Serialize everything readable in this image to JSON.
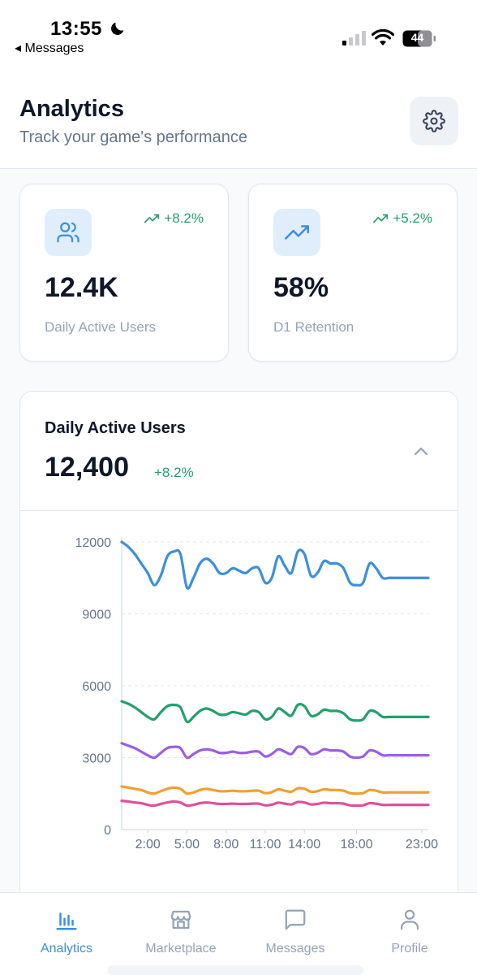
{
  "status_bar": {
    "time": "13:55",
    "back_label": "Messages",
    "battery": "44"
  },
  "header": {
    "title": "Analytics",
    "subtitle": "Track your game's performance",
    "settings_icon": "gear-icon"
  },
  "stats": [
    {
      "icon": "users-icon",
      "change": "+8.2%",
      "value": "12.4K",
      "label": "Daily Active Users"
    },
    {
      "icon": "trending-up-icon",
      "change": "+5.2%",
      "value": "58%",
      "label": "D1 Retention"
    }
  ],
  "chart_card": {
    "title": "Daily Active Users",
    "total": "12,400",
    "change": "+8.2%",
    "collapse_icon": "chevron-up-icon"
  },
  "chart_data": {
    "type": "line",
    "x_ticks": [
      "2:00",
      "5:00",
      "8:00",
      "11:00",
      "14:00",
      "18:00",
      "23:00"
    ],
    "y_ticks": [
      "0",
      "3000",
      "6000",
      "9000",
      "12000"
    ],
    "ylim": [
      0,
      12000
    ],
    "x": [
      0,
      0.5,
      1,
      1.5,
      2,
      2.5,
      3,
      3.5,
      4,
      4.5,
      5,
      5.5,
      6,
      6.5,
      7,
      7.5,
      8,
      8.5,
      9,
      9.5,
      10,
      10.5,
      11,
      11.5,
      12,
      12.5,
      13,
      13.5,
      14,
      14.5,
      15,
      15.5,
      16,
      16.5,
      17,
      17.5,
      18,
      18.5,
      19,
      19.5,
      20,
      20.5,
      21,
      21.5,
      22,
      22.5,
      23,
      23.5
    ],
    "xlim": [
      0,
      23.5
    ],
    "x_tick_values": [
      2,
      5,
      8,
      11,
      14,
      18,
      23
    ],
    "grid": true,
    "series": [
      {
        "color": "#3b8fdd",
        "values": [
          12000,
          11800,
          11500,
          11100,
          10700,
          10200,
          10600,
          11400,
          11600,
          11500,
          10100,
          10500,
          11100,
          11300,
          11100,
          10700,
          10700,
          10900,
          10800,
          10700,
          10900,
          10900,
          10300,
          10500,
          11400,
          11000,
          10700,
          11600,
          11500,
          10600,
          10700,
          11200,
          11100,
          11100,
          10900,
          10300,
          10200,
          10300,
          11100,
          10900,
          10500,
          10500,
          10500,
          10500,
          10500,
          10500,
          10500,
          10500
        ]
      },
      {
        "color": "#22a06b",
        "values": [
          5350,
          5250,
          5100,
          4900,
          4700,
          4600,
          4900,
          5150,
          5200,
          5100,
          4500,
          4700,
          4950,
          5050,
          4950,
          4800,
          4800,
          4900,
          4850,
          4800,
          4950,
          4900,
          4600,
          4700,
          5050,
          4900,
          4750,
          5200,
          5150,
          4750,
          4800,
          5000,
          4950,
          4950,
          4850,
          4600,
          4550,
          4600,
          4950,
          4900,
          4700,
          4700,
          4700,
          4700,
          4700,
          4700,
          4700,
          4700
        ]
      },
      {
        "color": "#9b5de5",
        "values": [
          3600,
          3500,
          3400,
          3250,
          3100,
          3000,
          3200,
          3400,
          3450,
          3400,
          3000,
          3150,
          3300,
          3350,
          3300,
          3200,
          3200,
          3250,
          3200,
          3200,
          3250,
          3250,
          3050,
          3150,
          3350,
          3250,
          3150,
          3450,
          3400,
          3150,
          3200,
          3350,
          3300,
          3300,
          3250,
          3050,
          3000,
          3050,
          3300,
          3250,
          3100,
          3100,
          3100,
          3100,
          3100,
          3100,
          3100,
          3100
        ]
      },
      {
        "color": "#f0a030",
        "values": [
          1800,
          1750,
          1700,
          1650,
          1550,
          1500,
          1600,
          1700,
          1750,
          1700,
          1500,
          1550,
          1650,
          1700,
          1650,
          1600,
          1600,
          1620,
          1600,
          1600,
          1620,
          1620,
          1520,
          1560,
          1680,
          1620,
          1580,
          1720,
          1700,
          1580,
          1600,
          1680,
          1650,
          1650,
          1620,
          1520,
          1500,
          1520,
          1650,
          1620,
          1550,
          1550,
          1550,
          1550,
          1550,
          1550,
          1550,
          1550
        ]
      },
      {
        "color": "#e0509a",
        "values": [
          1200,
          1170,
          1130,
          1100,
          1030,
          1000,
          1070,
          1130,
          1170,
          1130,
          1000,
          1030,
          1100,
          1130,
          1100,
          1070,
          1070,
          1080,
          1070,
          1070,
          1080,
          1080,
          1010,
          1040,
          1120,
          1080,
          1050,
          1150,
          1130,
          1050,
          1070,
          1120,
          1100,
          1100,
          1080,
          1010,
          1000,
          1010,
          1100,
          1080,
          1030,
          1030,
          1030,
          1030,
          1030,
          1030,
          1030,
          1030
        ]
      }
    ]
  },
  "bottom_nav": [
    {
      "label": "Analytics",
      "icon": "bar-chart-icon",
      "active": true
    },
    {
      "label": "Marketplace",
      "icon": "store-icon",
      "active": false
    },
    {
      "label": "Messages",
      "icon": "message-icon",
      "active": false
    },
    {
      "label": "Profile",
      "icon": "user-icon",
      "active": false
    }
  ]
}
